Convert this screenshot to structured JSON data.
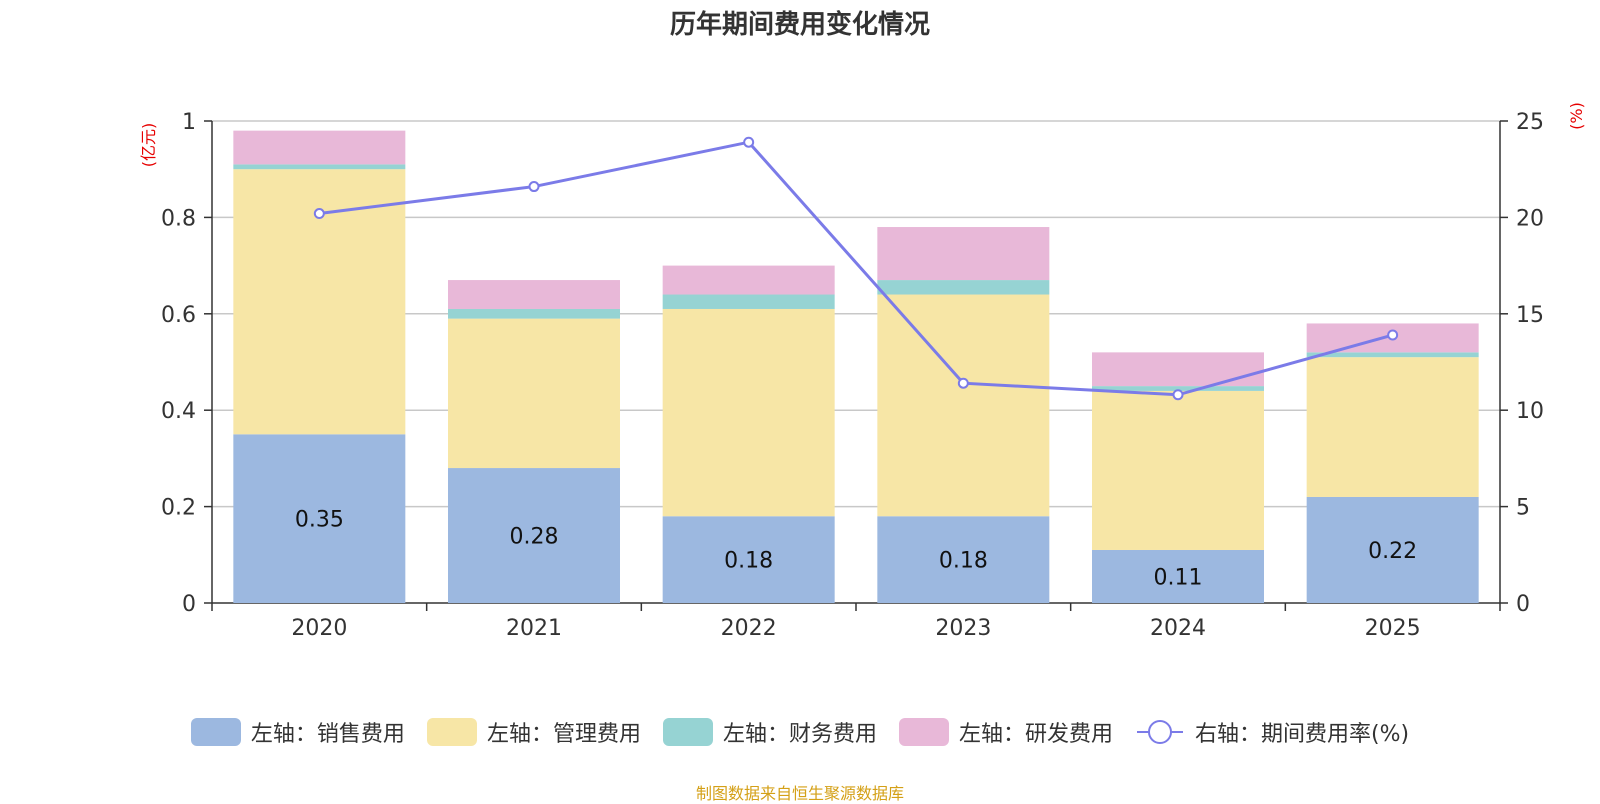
{
  "chart_data": {
    "type": "bar",
    "title": "历年期间费用变化情况",
    "categories": [
      "2020",
      "2021",
      "2022",
      "2023",
      "2024",
      "2025"
    ],
    "y_left_label": "(亿元)",
    "y_right_label": "(%)",
    "y_left_ticks": [
      "0",
      "0.2",
      "0.4",
      "0.6",
      "0.8",
      "1"
    ],
    "y_right_ticks": [
      "0",
      "5",
      "10",
      "15",
      "20",
      "25"
    ],
    "ylim_left": [
      0,
      1
    ],
    "ylim_right": [
      0,
      25
    ],
    "series": [
      {
        "name": "左轴：销售费用",
        "axis": "left",
        "kind": "bar",
        "color": "#9cb8e0",
        "values": [
          0.35,
          0.28,
          0.18,
          0.18,
          0.11,
          0.22
        ],
        "labels": [
          "0.35",
          "0.28",
          "0.18",
          "0.18",
          "0.11",
          "0.22"
        ]
      },
      {
        "name": "左轴：管理费用",
        "axis": "left",
        "kind": "bar",
        "color": "#f7e6a6",
        "values": [
          0.55,
          0.31,
          0.43,
          0.46,
          0.33,
          0.29
        ]
      },
      {
        "name": "左轴：财务费用",
        "axis": "left",
        "kind": "bar",
        "color": "#96d3d3",
        "values": [
          0.01,
          0.02,
          0.03,
          0.03,
          0.01,
          0.01
        ]
      },
      {
        "name": "左轴：研发费用",
        "axis": "left",
        "kind": "bar",
        "color": "#e8b8d8",
        "values": [
          0.07,
          0.06,
          0.06,
          0.11,
          0.07,
          0.06
        ]
      },
      {
        "name": "右轴：期间费用率(%)",
        "axis": "right",
        "kind": "line",
        "color": "#7b7be8",
        "values": [
          20.2,
          21.6,
          23.9,
          11.4,
          10.8,
          13.9
        ]
      }
    ]
  },
  "source": "制图数据来自恒生聚源数据库"
}
